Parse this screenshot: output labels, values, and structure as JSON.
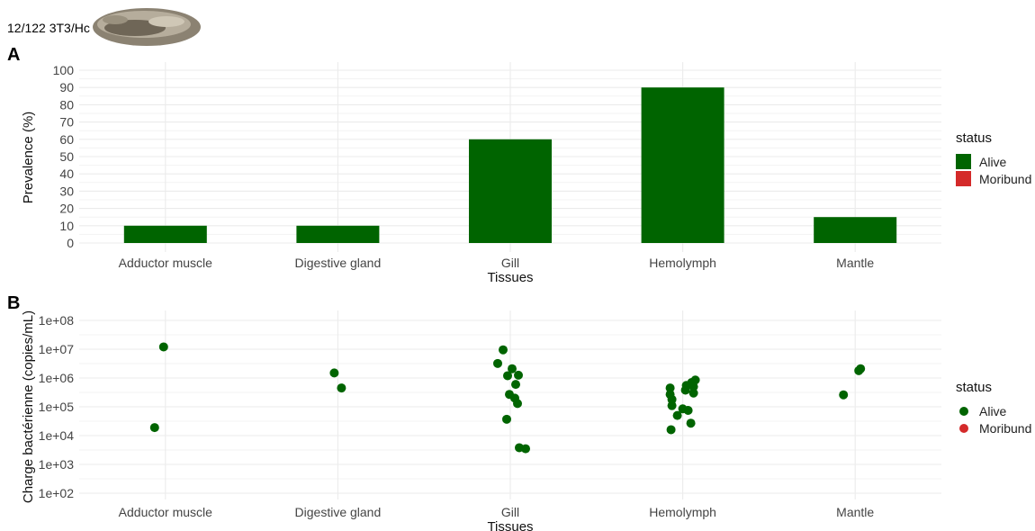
{
  "header": {
    "strain_label": "12/122 3T3/Hc"
  },
  "colors": {
    "alive": "#006400",
    "moribund": "#d42a2a",
    "grid": "#ebebeb"
  },
  "chart_data": [
    {
      "panel": "A",
      "type": "bar",
      "xlabel": "Tissues",
      "ylabel": "Prevalence (%)",
      "ylim": [
        0,
        100
      ],
      "yticks": [
        "0",
        "10",
        "20",
        "30",
        "40",
        "50",
        "60",
        "70",
        "80",
        "90",
        "100"
      ],
      "categories": [
        "Adductor muscle",
        "Digestive gland",
        "Gill",
        "Hemolymph",
        "Mantle"
      ],
      "series": [
        {
          "name": "Alive",
          "values": [
            10,
            10,
            60,
            90,
            15
          ]
        }
      ],
      "legend": {
        "title": "status",
        "entries": [
          "Alive",
          "Moribund"
        ],
        "position": "right"
      },
      "grid": true
    },
    {
      "panel": "B",
      "type": "scatter",
      "xlabel": "Tissues",
      "ylabel": "Charge bactérienne (copies/mL)",
      "yscale": "log10",
      "ylim": [
        100,
        100000000
      ],
      "yticks": [
        "1e+02",
        "1e+03",
        "1e+04",
        "1e+05",
        "1e+06",
        "1e+07",
        "1e+08"
      ],
      "categories": [
        "Adductor muscle",
        "Digestive gland",
        "Gill",
        "Hemolymph",
        "Mantle"
      ],
      "points": [
        {
          "x": "Adductor muscle",
          "y": 12000000,
          "status": "Alive"
        },
        {
          "x": "Adductor muscle",
          "y": 19000,
          "status": "Alive"
        },
        {
          "x": "Digestive gland",
          "y": 1500000,
          "status": "Alive"
        },
        {
          "x": "Digestive gland",
          "y": 450000,
          "status": "Alive"
        },
        {
          "x": "Gill",
          "y": 9500000,
          "status": "Alive"
        },
        {
          "x": "Gill",
          "y": 3200000,
          "status": "Alive"
        },
        {
          "x": "Gill",
          "y": 2100000,
          "status": "Alive"
        },
        {
          "x": "Gill",
          "y": 1250000,
          "status": "Alive"
        },
        {
          "x": "Gill",
          "y": 1200000,
          "status": "Alive"
        },
        {
          "x": "Gill",
          "y": 600000,
          "status": "Alive"
        },
        {
          "x": "Gill",
          "y": 270000,
          "status": "Alive"
        },
        {
          "x": "Gill",
          "y": 200000,
          "status": "Alive"
        },
        {
          "x": "Gill",
          "y": 130000,
          "status": "Alive"
        },
        {
          "x": "Gill",
          "y": 37000,
          "status": "Alive"
        },
        {
          "x": "Gill",
          "y": 3800,
          "status": "Alive"
        },
        {
          "x": "Gill",
          "y": 3500,
          "status": "Alive"
        },
        {
          "x": "Hemolymph",
          "y": 850000,
          "status": "Alive"
        },
        {
          "x": "Hemolymph",
          "y": 700000,
          "status": "Alive"
        },
        {
          "x": "Hemolymph",
          "y": 550000,
          "status": "Alive"
        },
        {
          "x": "Hemolymph",
          "y": 500000,
          "status": "Alive"
        },
        {
          "x": "Hemolymph",
          "y": 450000,
          "status": "Alive"
        },
        {
          "x": "Hemolymph",
          "y": 380000,
          "status": "Alive"
        },
        {
          "x": "Hemolymph",
          "y": 300000,
          "status": "Alive"
        },
        {
          "x": "Hemolymph",
          "y": 270000,
          "status": "Alive"
        },
        {
          "x": "Hemolymph",
          "y": 180000,
          "status": "Alive"
        },
        {
          "x": "Hemolymph",
          "y": 110000,
          "status": "Alive"
        },
        {
          "x": "Hemolymph",
          "y": 85000,
          "status": "Alive"
        },
        {
          "x": "Hemolymph",
          "y": 75000,
          "status": "Alive"
        },
        {
          "x": "Hemolymph",
          "y": 50000,
          "status": "Alive"
        },
        {
          "x": "Hemolymph",
          "y": 27000,
          "status": "Alive"
        },
        {
          "x": "Hemolymph",
          "y": 16000,
          "status": "Alive"
        },
        {
          "x": "Mantle",
          "y": 2100000,
          "status": "Alive"
        },
        {
          "x": "Mantle",
          "y": 1800000,
          "status": "Alive"
        },
        {
          "x": "Mantle",
          "y": 260000,
          "status": "Alive"
        }
      ],
      "legend": {
        "title": "status",
        "entries": [
          "Alive",
          "Moribund"
        ],
        "position": "right"
      },
      "grid": true
    }
  ]
}
